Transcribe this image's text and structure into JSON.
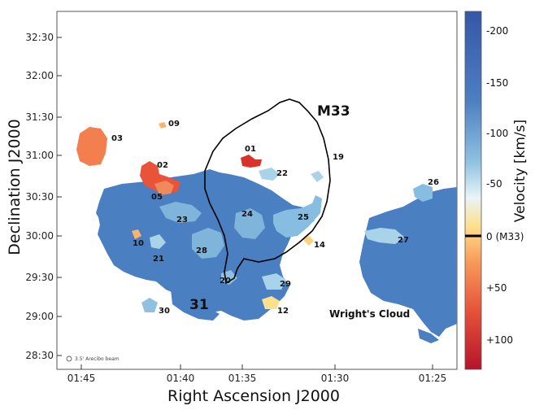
{
  "axes": {
    "xlabel": "Right Ascension J2000",
    "ylabel": "Declination J2000",
    "xticks": [
      "01:45",
      "01:40",
      "01:35",
      "01:30",
      "01:25"
    ],
    "yticks": [
      "32:30",
      "32:00",
      "31:30",
      "31:00",
      "30:30",
      "30:00",
      "29:30",
      "29:00",
      "28:30"
    ]
  },
  "colorbar": {
    "title": "Velocity [km/s]",
    "ticks": [
      "-200",
      "-150",
      "-100",
      "-50",
      "0 (M33)",
      "+50",
      "+100"
    ]
  },
  "beam_label": "3.5' Arecibo beam",
  "galaxy_labels": {
    "m33": "M33",
    "m31": "31",
    "wright": "Wright's Cloud"
  },
  "clouds": [
    {
      "id": "01",
      "color": "#d8322a"
    },
    {
      "id": "02",
      "color": "#e8533a"
    },
    {
      "id": "03",
      "color": "#f47f4e"
    },
    {
      "id": "05",
      "color": "#f08a5d"
    },
    {
      "id": "09",
      "color": "#fbb469"
    },
    {
      "id": "10",
      "color": "#fbb469"
    },
    {
      "id": "12",
      "color": "#fde08e"
    },
    {
      "id": "14",
      "color": "#fdd27f"
    },
    {
      "id": "19",
      "color": "#ffffff"
    },
    {
      "id": "20",
      "color": "#4a7fc2"
    },
    {
      "id": "21",
      "color": "#a9d3e8"
    },
    {
      "id": "22",
      "color": "#a9d3e8"
    },
    {
      "id": "23",
      "color": "#7fb5db"
    },
    {
      "id": "24",
      "color": "#7fb5db"
    },
    {
      "id": "25",
      "color": "#86bde0"
    },
    {
      "id": "26",
      "color": "#86bde0"
    },
    {
      "id": "27",
      "color": "#a9d3e8"
    },
    {
      "id": "28",
      "color": "#7fb5db"
    },
    {
      "id": "29",
      "color": "#a9d3e8"
    },
    {
      "id": "30",
      "color": "#8fc1e2"
    }
  ],
  "colors": {
    "bulk_blue": "#4a7fc2",
    "light_blue": "#8fc1e2",
    "colorbar_stops": [
      "#3656a8",
      "#4d7fc1",
      "#8fc1e2",
      "#e8f4f8",
      "#fde08e",
      "#f89a5a",
      "#e5513a",
      "#b5142b"
    ]
  }
}
